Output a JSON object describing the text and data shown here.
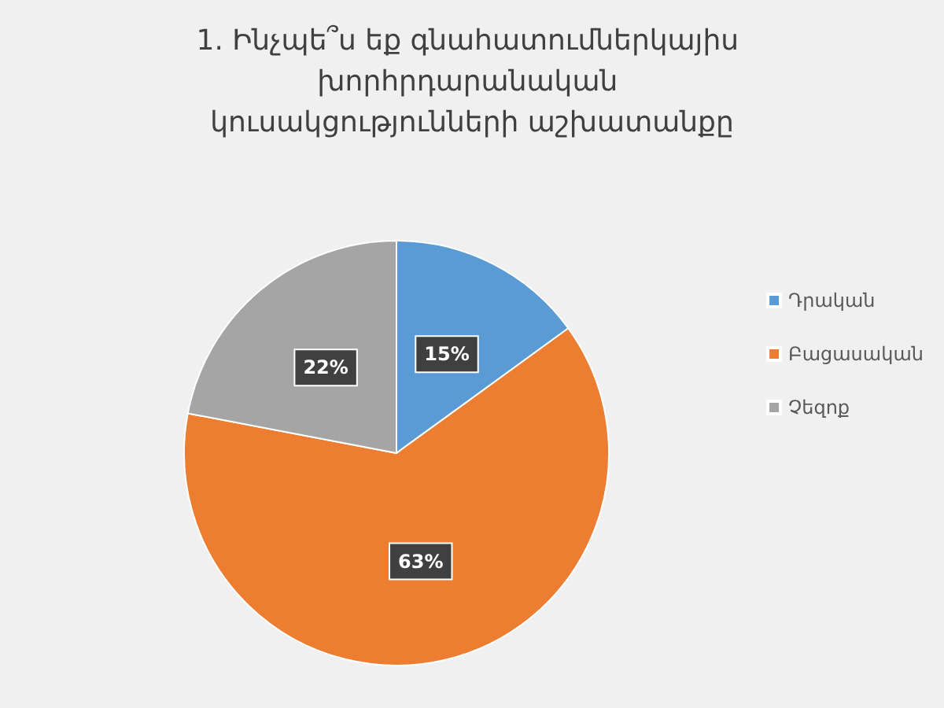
{
  "chart_data": {
    "type": "pie",
    "title": "1. Ինչպե՞ս եք գնահատումներկայիս խորհրդարանական կուսակցությունների աշխատանքը",
    "categories": [
      "Դրական",
      "Բացասական",
      "Չեզոք"
    ],
    "values": [
      15,
      63,
      22
    ],
    "value_labels": [
      "15%",
      "63%",
      "22%"
    ],
    "colors": [
      "#5b9bd5",
      "#ed7d31",
      "#a5a5a5"
    ],
    "legend": "right"
  }
}
